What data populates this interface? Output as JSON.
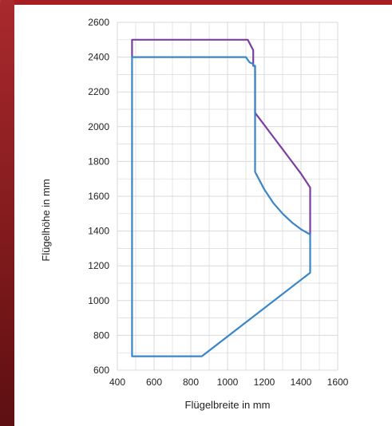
{
  "chart_data": {
    "type": "line",
    "title": "",
    "xlabel": "Flügelbreite in mm",
    "ylabel": "Flügelhöhe in mm",
    "xlim": [
      400,
      1600
    ],
    "ylim": [
      600,
      2600
    ],
    "x_ticks": [
      "400",
      "600",
      "800",
      "1000",
      "1200",
      "1400",
      "1600"
    ],
    "y_ticks": [
      "600",
      "800",
      "1000",
      "1200",
      "1400",
      "1600",
      "1800",
      "2000",
      "2200",
      "2400",
      "2600"
    ],
    "grid": true,
    "colors": {
      "purple": "#7b3fa0",
      "blue": "#3a86c8",
      "grid": "#d9d9d9"
    },
    "series": [
      {
        "color": "#7b3fa0",
        "points": [
          [
            480,
            2400
          ],
          [
            480,
            2500
          ],
          [
            1110,
            2500
          ],
          [
            1140,
            2440
          ],
          [
            1140,
            2350
          ],
          [
            1150,
            2350
          ],
          [
            1150,
            2080
          ],
          [
            1200,
            2010
          ],
          [
            1250,
            1940
          ],
          [
            1300,
            1870
          ],
          [
            1350,
            1800
          ],
          [
            1400,
            1730
          ],
          [
            1450,
            1650
          ],
          [
            1450,
            1380
          ]
        ]
      },
      {
        "color": "#3a86c8",
        "points": [
          [
            480,
            680
          ],
          [
            480,
            2400
          ],
          [
            1100,
            2400
          ],
          [
            1120,
            2370
          ],
          [
            1140,
            2360
          ],
          [
            1140,
            2350
          ],
          [
            1150,
            2350
          ],
          [
            1150,
            1740
          ],
          [
            1200,
            1640
          ],
          [
            1250,
            1560
          ],
          [
            1300,
            1500
          ],
          [
            1350,
            1450
          ],
          [
            1400,
            1410
          ],
          [
            1450,
            1380
          ],
          [
            1450,
            1160
          ],
          [
            860,
            680
          ],
          [
            480,
            680
          ]
        ]
      }
    ]
  }
}
